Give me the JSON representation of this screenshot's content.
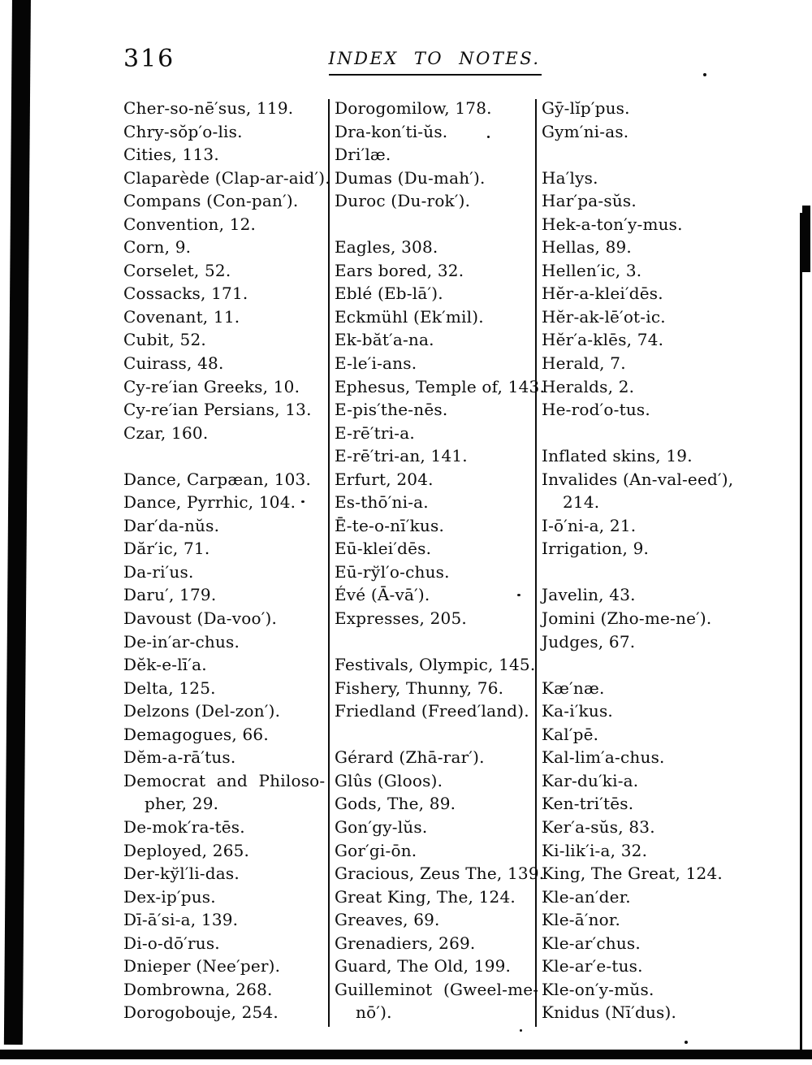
{
  "page": {
    "page_number": "316",
    "header_title": "INDEX TO NOTES."
  },
  "columns": [
    {
      "lines": [
        "Cher-so-nē′sus, 119.",
        "Chry-sŏp′o-lis.",
        "Cities, 113.",
        "Claparède (Clap-ar-aid′).",
        "Compans (Con-pan′).",
        "Convention, 12.",
        "Corn, 9.",
        "Corselet, 52.",
        "Cossacks, 171.",
        "Covenant, 11.",
        "Cubit, 52.",
        "Cuirass, 48.",
        "Cy-re′ian Greeks, 10.",
        "Cy-re′ian Persians, 13.",
        "Czar, 160.",
        "",
        "Dance, Carpæan, 103.",
        "Dance, Pyrrhic, 104.",
        "Dar′da-nŭs.",
        "Dăr′ic, 71.",
        "Da-ri′us.",
        "Daru′, 179.",
        "Davoust (Da-voo′).",
        "De-in′ar-chus.",
        "Dĕk-e-lī′a.",
        "Delta, 125.",
        "Delzons (Del-zon′).",
        "Demagogues, 66.",
        "Dĕm-a-rā′tus.",
        {
          "text": "Democrat and Philoso-",
          "wide": true
        },
        {
          "text": "pher, 29.",
          "indent": true
        },
        "De-mok′ra-tēs.",
        "Deployed, 265.",
        "Der-kўl′li-das.",
        "Dex-ip′pus.",
        "Dī-ā′si-a, 139.",
        "Di-o-dō′rus.",
        "Dnieper (Nee′per).",
        "Dombrowna, 268.",
        "Dorogobouje, 254."
      ]
    },
    {
      "lines": [
        "Dorogomilow, 178.",
        "Dra-kon′ti-ŭs.",
        "Dri′læ.",
        "Dumas (Du-mah′).",
        "Duroc (Du-rok′).",
        "",
        "Eagles, 308.",
        "Ears bored, 32.",
        "Eblé (Eb-lā′).",
        "Eckmühl (Ek′mil).",
        "Ek-băt′a-na.",
        "E-le′i-ans.",
        "Ephesus, Temple of, 143.",
        "E-pis′the-nēs.",
        "E-rē′tri-a.",
        "E-rē′tri-an, 141.",
        "Erfurt, 204.",
        "Es-thō′ni-a.",
        "Ē-te-o-nī′kus.",
        "Eū-klei′dēs.",
        "Eū-rўl′o-chus.",
        "Évé (Ā-vā′).",
        "Expresses, 205.",
        "",
        "Festivals, Olympic, 145.",
        "Fishery, Thunny, 76.",
        "Friedland (Freed′land).",
        "",
        "Gérard (Zhā-rar′).",
        "Glûs (Gloos).",
        "Gods, The, 89.",
        "Gon′gy-lŭs.",
        "Gor′gi-ōn.",
        "Gracious, Zeus The, 139.",
        "Great King, The, 124.",
        "Greaves, 69.",
        "Grenadiers, 269.",
        "Guard, The Old, 199.",
        {
          "text": "Guilleminot (Gweel-me-",
          "wide": true
        },
        {
          "text": "nō′).",
          "indent": true
        }
      ]
    },
    {
      "lines": [
        "Gȳ-lĭp′pus.",
        "Gym′ni-as.",
        "",
        "Ha′lys.",
        "Har′pa-sŭs.",
        "Hek-a-ton′y-mus.",
        "Hellas, 89.",
        "Hellen′ic, 3.",
        "Hĕr-a-klei′dēs.",
        "Hĕr-ak-lē′ot-ic.",
        "Hĕr′a-klēs, 74.",
        "Herald, 7.",
        "Heralds, 2.",
        "He-rod′o-tus.",
        "",
        "Inflated skins, 19.",
        "Invalides (An-val-eed′),",
        {
          "text": "214.",
          "indent": true
        },
        "I-ō′ni-a, 21.",
        "Irrigation, 9.",
        "",
        "Javelin, 43.",
        "Jomini (Zho-me-ne′).",
        "Judges, 67.",
        "",
        "Kæ′næ.",
        "Ka-i′kus.",
        "Kal′pē.",
        "Kal-lim′a-chus.",
        "Kar-du′ki-a.",
        "Ken-tri′tēs.",
        "Ker′a-sŭs, 83.",
        "Ki-lik′i-a, 32.",
        "King, The Great, 124.",
        "Kle-an′der.",
        "Kle-ā′nor.",
        "Kle-ar′chus.",
        "Kle-ar′e-tus.",
        "Kle-on′y-mŭs.",
        "Knidus (Nī′dus)."
      ]
    }
  ]
}
